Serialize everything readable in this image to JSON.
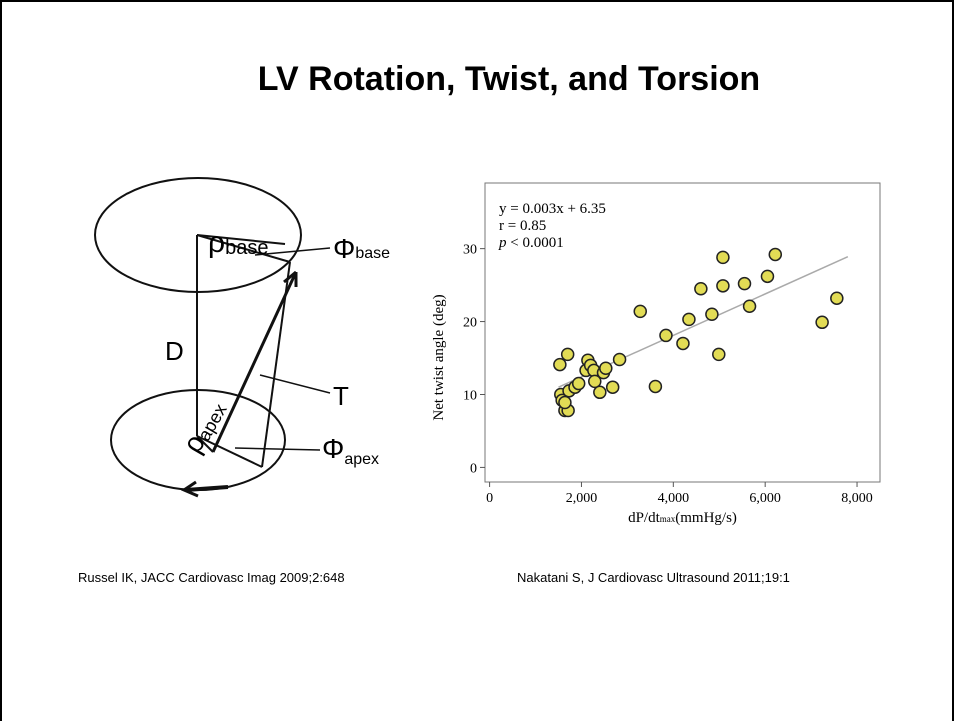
{
  "title": "LV Rotation, Twist, and Torsion",
  "diagram": {
    "rho_base": [
      "ρ",
      "base"
    ],
    "phi_base": [
      "Φ",
      "base"
    ],
    "D": "D",
    "T": "T",
    "phi_apex": [
      "Φ",
      "apex"
    ],
    "rho_apex": [
      "ρ",
      "apex"
    ]
  },
  "citations": [
    "Russel IK, JACC Cardiovasc Imag 2009;2:648",
    "Nakatani S, J Cardiovasc Ultrasound 2011;19:1"
  ],
  "chart_data": {
    "type": "scatter",
    "annotations": [
      "y = 0.003x + 6.35",
      "r = 0.85"
    ],
    "p_annotation": [
      "p",
      " < 0.0001"
    ],
    "x_label": [
      "dP/dt",
      "max",
      "(mmHg/s)"
    ],
    "y_label": "Net twist angle (deg)",
    "xlim": [
      -100,
      8500
    ],
    "ylim": [
      -2,
      39
    ],
    "xticks": [
      0,
      {
        "value": 2000,
        "label": "2,000"
      },
      {
        "value": 4000,
        "label": "4,000"
      },
      {
        "value": 6000,
        "label": "6,000"
      },
      {
        "value": 8000,
        "label": "8,000"
      }
    ],
    "yticks": [
      0,
      10,
      20,
      30
    ],
    "color": "#e2dc55",
    "x": [
      1530,
      1700,
      1550,
      1580,
      1640,
      1710,
      1640,
      1730,
      1860,
      1940,
      2100,
      2140,
      2200,
      2270,
      2290,
      2400,
      2480,
      2530,
      2680,
      2830,
      3280,
      3610,
      3840,
      4210,
      4340,
      4600,
      4840,
      4990,
      5080,
      5080,
      5550,
      5660,
      6050,
      6220,
      7240,
      7560
    ],
    "values": [
      14.1,
      15.5,
      10,
      9.2,
      7.8,
      7.8,
      8.9,
      10.5,
      11,
      11.5,
      13.3,
      14.7,
      14,
      13.3,
      11.8,
      10.3,
      13,
      13.6,
      11,
      14.8,
      21.4,
      11.1,
      18.1,
      17,
      20.3,
      24.5,
      21,
      15.5,
      24.9,
      28.8,
      25.2,
      22.1,
      26.2,
      29.2,
      19.9,
      23.2
    ],
    "fit_line": {
      "x": [
        1500,
        7800
      ],
      "values": [
        11,
        28.9
      ],
      "color": "#aaaaaa"
    }
  }
}
